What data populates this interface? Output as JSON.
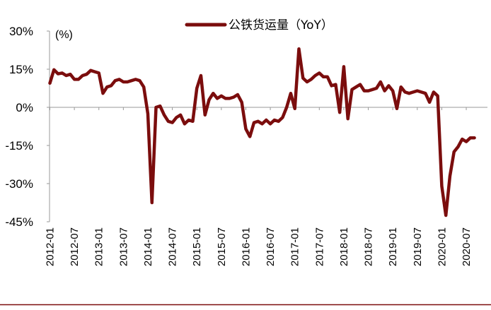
{
  "chart_data": {
    "type": "line",
    "unit_label": "(%)",
    "legend": [
      {
        "label": "公铁货运量（YoY）",
        "color": "#7b0d0d"
      }
    ],
    "y_ticks": [
      "30%",
      "15%",
      "0%",
      "-15%",
      "-30%",
      "-45%"
    ],
    "ylim": [
      -45,
      30
    ],
    "x_ticks": [
      "2012-01",
      "2012-07",
      "2013-01",
      "2013-07",
      "2014-01",
      "2014-07",
      "2015-01",
      "2015-07",
      "2016-01",
      "2016-07",
      "2017-01",
      "2017-07",
      "2018-01",
      "2018-07",
      "2019-01",
      "2019-07",
      "2020-01",
      "2020-07"
    ],
    "series": [
      {
        "name": "公铁货运量（YoY）",
        "color": "#7b0d0d",
        "x_start": "2012-01",
        "values": [
          9.5,
          14.8,
          13.2,
          13.5,
          12.5,
          13,
          11,
          11,
          12.5,
          13,
          14.5,
          14,
          13.5,
          5.5,
          8,
          8.5,
          10.5,
          11,
          10,
          10,
          10.5,
          11,
          10.5,
          8,
          -2.5,
          -37.5,
          0,
          0.5,
          -3,
          -5.5,
          -6,
          -4,
          -3,
          -6.5,
          -5,
          -5.5,
          7.5,
          12.5,
          -3,
          3,
          5.5,
          3.5,
          4.5,
          3.5,
          3.5,
          4,
          5,
          2,
          -8.5,
          -11.5,
          -6,
          -5.5,
          -6.5,
          -5,
          -6.5,
          -5,
          -5.5,
          -4,
          0,
          5.5,
          -0.5,
          23,
          11.5,
          10,
          11,
          12.5,
          13.5,
          12,
          12,
          8.5,
          9,
          -2,
          16,
          -4.5,
          7,
          8,
          9,
          6.5,
          6.5,
          7,
          7.5,
          10,
          6.5,
          8.5,
          6.5,
          -0.5,
          8,
          6,
          5.5,
          6,
          6.5,
          6,
          5.5,
          2,
          6,
          4.5,
          -31,
          -42.5,
          -27,
          -17.5,
          -15.5,
          -12.5,
          -13.5,
          -12,
          -12
        ]
      }
    ]
  }
}
